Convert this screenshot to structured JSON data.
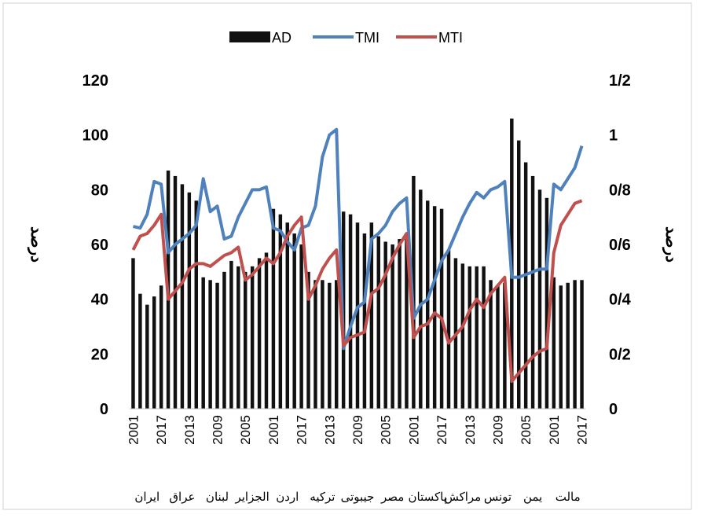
{
  "chart_data": {
    "type": "combo",
    "ylabel": "درصد",
    "y2label": "درصد",
    "ylim": [
      0,
      120
    ],
    "yticks": [
      0,
      20,
      40,
      60,
      80,
      100,
      120
    ],
    "y2lim": [
      0,
      1.2
    ],
    "y2ticks": [
      0,
      {
        "value": 0.2,
        "label": "0/2"
      },
      {
        "value": 0.4,
        "label": "0/4"
      },
      {
        "value": 0.6,
        "label": "0/6"
      },
      {
        "value": 0.8,
        "label": "0/8"
      },
      1,
      {
        "value": 1.2,
        "label": "1/2"
      }
    ],
    "categories": [
      "2001",
      null,
      null,
      null,
      "2017",
      null,
      null,
      null,
      "2013",
      null,
      null,
      null,
      "2009",
      null,
      null,
      null,
      "2005",
      null,
      null,
      null,
      "2001",
      null,
      null,
      null,
      "2017",
      null,
      null,
      null,
      "2013",
      null,
      null,
      null,
      "2009",
      null,
      null,
      null,
      "2005",
      null,
      null,
      null,
      "2001",
      null,
      null,
      null,
      "2017",
      null,
      null,
      null,
      "2013",
      null,
      null,
      null,
      "2009",
      null,
      null,
      null,
      "2005",
      null,
      null,
      null,
      "2001",
      null,
      null,
      null,
      "2017"
    ],
    "groups": [
      "ایران",
      "عراق",
      "لبنان",
      "الجزایر",
      "اردن",
      "ترکیه",
      "جیبوتی",
      "مصر",
      "پاکستان",
      "مراکش",
      "تونس",
      "یمن",
      "مالت"
    ],
    "legend": "top",
    "series": [
      {
        "name": "AD",
        "type": "bar",
        "color": "#111111",
        "values": [
          55,
          42,
          38,
          41,
          45,
          87,
          85,
          82,
          79,
          76,
          48,
          47,
          46,
          50,
          54,
          52,
          50,
          52,
          55,
          57,
          73,
          71,
          68,
          64,
          60,
          50,
          47,
          47,
          46,
          47,
          72,
          71,
          68,
          64,
          68,
          63,
          61,
          60,
          62,
          62,
          85,
          80,
          76,
          74,
          73,
          58,
          55,
          53,
          52,
          52,
          52,
          47,
          45,
          46,
          106,
          98,
          90,
          85,
          80,
          77,
          48,
          45,
          46,
          47,
          47
        ]
      },
      {
        "name": "TMI",
        "type": "line",
        "color": "#4f81bd",
        "values": [
          66.6,
          66,
          71,
          83,
          82,
          57,
          60,
          62,
          64,
          67,
          84,
          72,
          74,
          62,
          63,
          70,
          75,
          80,
          80,
          81,
          66,
          65,
          61,
          58,
          66,
          67,
          74,
          92,
          100,
          102,
          22,
          30,
          37,
          39,
          62,
          64,
          67,
          72,
          75,
          77,
          33,
          38,
          40,
          47,
          54,
          58,
          64,
          70,
          75,
          79,
          77,
          80,
          81,
          83,
          48,
          48,
          49,
          50,
          51,
          51,
          82,
          80,
          84,
          88,
          96
        ]
      },
      {
        "name": "MTI",
        "type": "line",
        "axis": "y2",
        "color": "#c0504d",
        "values": [
          0.58,
          0.63,
          0.64,
          0.67,
          0.71,
          0.4,
          0.43,
          0.46,
          0.51,
          0.53,
          0.53,
          0.52,
          0.54,
          0.56,
          0.57,
          0.59,
          0.47,
          0.49,
          0.52,
          0.55,
          0.53,
          0.57,
          0.63,
          0.67,
          0.7,
          0.4,
          0.45,
          0.51,
          0.55,
          0.58,
          0.23,
          0.26,
          0.27,
          0.28,
          0.42,
          0.44,
          0.49,
          0.55,
          0.6,
          0.64,
          0.26,
          0.3,
          0.31,
          0.35,
          0.33,
          0.24,
          0.27,
          0.3,
          0.36,
          0.4,
          0.37,
          0.42,
          0.45,
          0.48,
          0.1,
          0.13,
          0.16,
          0.19,
          0.21,
          0.22,
          0.57,
          0.67,
          0.71,
          0.75,
          0.76
        ]
      }
    ]
  }
}
